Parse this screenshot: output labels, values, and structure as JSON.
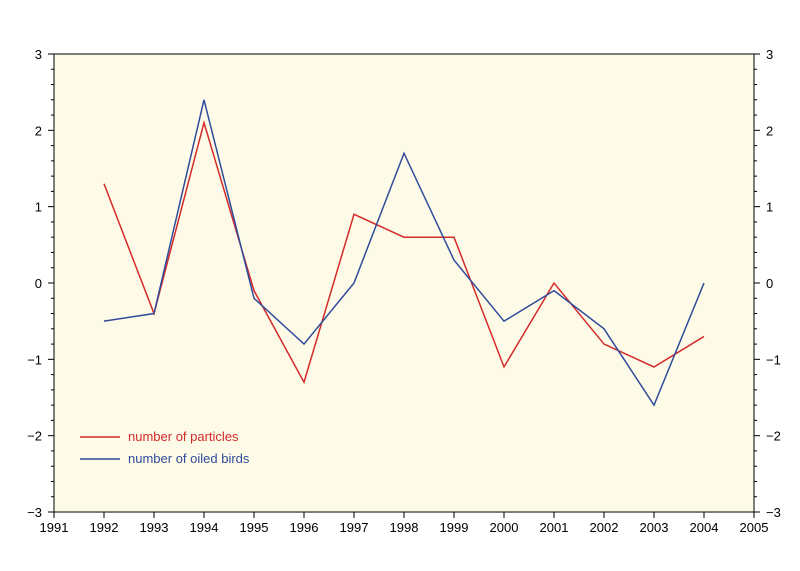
{
  "chart_data": {
    "type": "line",
    "title": "",
    "xlabel": "",
    "ylabel": "",
    "xlim": [
      1991,
      2005
    ],
    "ylim": [
      -3,
      3
    ],
    "x_ticks": [
      1991,
      1992,
      1993,
      1994,
      1995,
      1996,
      1997,
      1998,
      1999,
      2000,
      2001,
      2002,
      2003,
      2004,
      2005
    ],
    "y_ticks": [
      -3,
      -2,
      -1,
      0,
      1,
      2,
      3
    ],
    "y_tick_labels": [
      "−3",
      "−2",
      "−1",
      "0",
      "1",
      "2",
      "3"
    ],
    "grid": false,
    "legend_position": "bottom-left",
    "background": "#fdfbe8",
    "x": [
      1992,
      1993,
      1994,
      1995,
      1996,
      1997,
      1998,
      1999,
      2000,
      2001,
      2002,
      2003,
      2004
    ],
    "series": [
      {
        "name": "number of particles",
        "color": "#d42a2a",
        "values": [
          1.3,
          -0.4,
          2.1,
          -0.1,
          -1.3,
          0.9,
          0.6,
          0.6,
          -1.1,
          0.0,
          -0.8,
          -1.1,
          -0.7
        ]
      },
      {
        "name": "number of oiled birds",
        "color": "#2f4b9a",
        "values": [
          -0.5,
          -0.4,
          2.4,
          -0.2,
          -0.8,
          0.0,
          1.7,
          0.3,
          -0.5,
          -0.1,
          -0.6,
          -1.6,
          0.0
        ]
      }
    ]
  }
}
